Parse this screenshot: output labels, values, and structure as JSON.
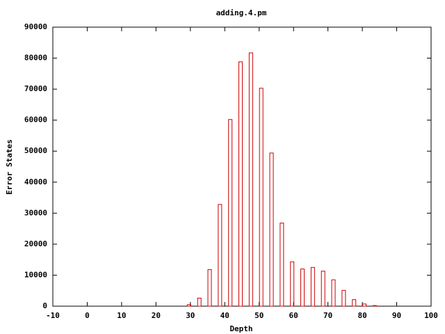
{
  "chart_data": {
    "type": "bar",
    "title": "adding.4.pm",
    "x_label": "Depth",
    "y_label": "Error States",
    "x": [
      29.6,
      32.6,
      35.6,
      38.6,
      41.6,
      44.6,
      47.6,
      50.6,
      53.6,
      56.6,
      59.6,
      62.6,
      65.6,
      68.6,
      71.6,
      74.6,
      77.6,
      80.6,
      83.6
    ],
    "values": [
      500,
      2600,
      11800,
      32800,
      60200,
      78800,
      81700,
      70300,
      49400,
      26800,
      14300,
      12000,
      12500,
      11300,
      8500,
      5100,
      2100,
      700,
      200
    ],
    "color": "#cc0000",
    "xlim": [
      -10,
      100
    ],
    "xticks": [
      -10,
      0,
      10,
      20,
      30,
      40,
      50,
      60,
      70,
      80,
      90,
      100
    ],
    "ylim": [
      0,
      90000
    ],
    "yticks": [
      0,
      10000,
      20000,
      30000,
      40000,
      50000,
      60000,
      70000,
      80000,
      90000
    ]
  }
}
